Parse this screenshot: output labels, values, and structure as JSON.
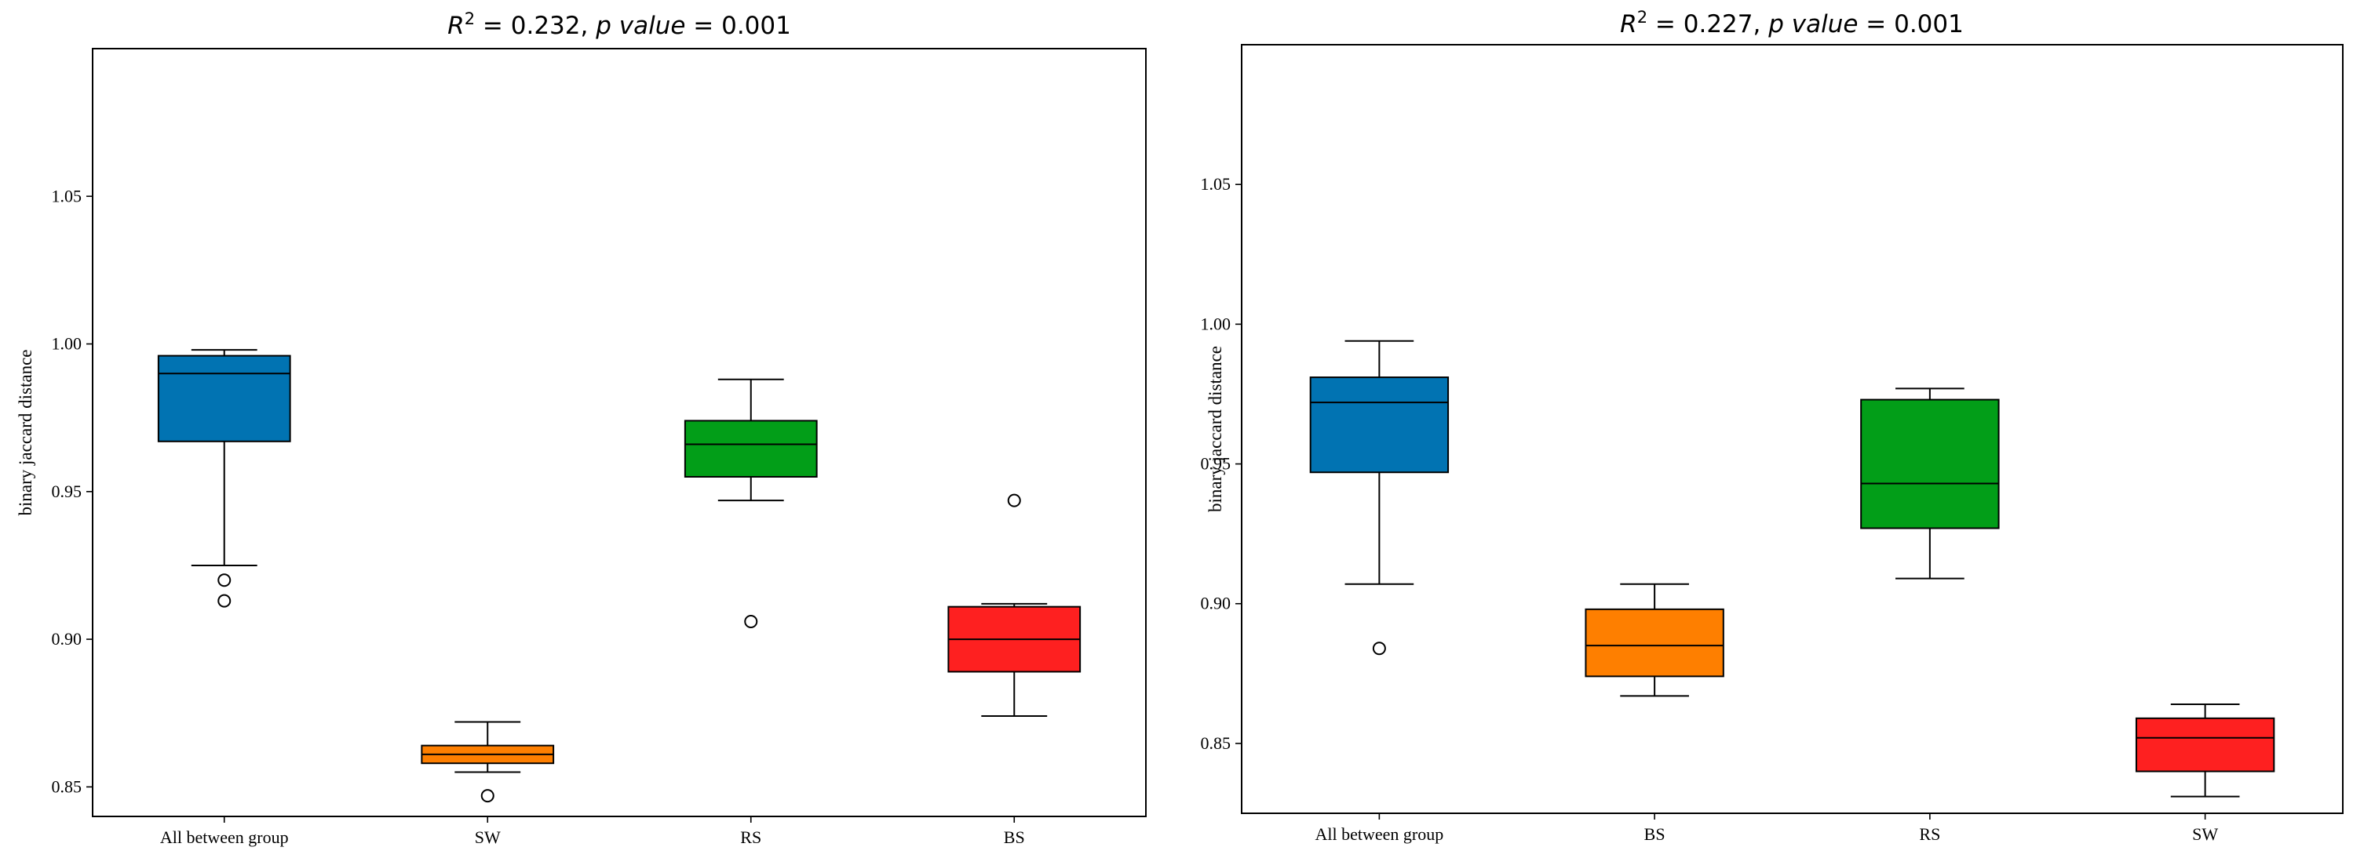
{
  "chart_data": [
    {
      "type": "box",
      "title": "R^2 = 0.232, p value = 0.001",
      "title_parts": {
        "r_label": "R",
        "r_sup": "2",
        "r_value": " = 0.232, ",
        "p_label": "p value",
        "p_value": " = 0.001"
      },
      "xlabel": "",
      "ylabel": "binary jaccard distance",
      "ylim": [
        0.84,
        1.1
      ],
      "yticks": [
        0.85,
        0.9,
        0.95,
        1.0,
        1.05
      ],
      "ytick_labels": [
        "0.85",
        "0.90",
        "0.95",
        "1.00",
        "1.05"
      ],
      "categories": [
        "All between group",
        "SW",
        "RS",
        "BS"
      ],
      "boxes": [
        {
          "name": "All between group",
          "color": "#0173b2",
          "whislo": 0.925,
          "q1": 0.967,
          "med": 0.99,
          "q3": 0.996,
          "whishi": 0.998,
          "fliers": [
            0.92,
            0.913
          ]
        },
        {
          "name": "SW",
          "color": "#fe7f00",
          "whislo": 0.855,
          "q1": 0.858,
          "med": 0.861,
          "q3": 0.864,
          "whishi": 0.872,
          "fliers": [
            0.847
          ]
        },
        {
          "name": "RS",
          "color": "#029e18",
          "whislo": 0.947,
          "q1": 0.955,
          "med": 0.966,
          "q3": 0.974,
          "whishi": 0.988,
          "fliers": [
            0.906
          ]
        },
        {
          "name": "BS",
          "color": "#fe2020",
          "whislo": 0.874,
          "q1": 0.889,
          "med": 0.9,
          "q3": 0.911,
          "whishi": 0.912,
          "fliers": [
            0.947
          ]
        }
      ]
    },
    {
      "type": "box",
      "title": "R^2 = 0.227, p value = 0.001",
      "title_parts": {
        "r_label": "R",
        "r_sup": "2",
        "r_value": " = 0.227, ",
        "p_label": "p value",
        "p_value": " = 0.001"
      },
      "xlabel": "",
      "ylabel": "binary jaccard distance",
      "ylim": [
        0.825,
        1.1
      ],
      "yticks": [
        0.85,
        0.9,
        0.95,
        1.0,
        1.05
      ],
      "ytick_labels": [
        "0.85",
        "0.90",
        "0.95",
        "1.00",
        "1.05"
      ],
      "categories": [
        "All between group",
        "BS",
        "RS",
        "SW"
      ],
      "boxes": [
        {
          "name": "All between group",
          "color": "#0173b2",
          "whislo": 0.907,
          "q1": 0.947,
          "med": 0.972,
          "q3": 0.981,
          "whishi": 0.994,
          "fliers": [
            0.884
          ]
        },
        {
          "name": "BS",
          "color": "#fe7f00",
          "whislo": 0.867,
          "q1": 0.874,
          "med": 0.885,
          "q3": 0.898,
          "whishi": 0.907,
          "fliers": []
        },
        {
          "name": "RS",
          "color": "#029e18",
          "whislo": 0.909,
          "q1": 0.927,
          "med": 0.943,
          "q3": 0.973,
          "whishi": 0.977,
          "fliers": []
        },
        {
          "name": "SW",
          "color": "#fe2020",
          "whislo": 0.831,
          "q1": 0.84,
          "med": 0.852,
          "q3": 0.859,
          "whishi": 0.864,
          "fliers": []
        }
      ]
    }
  ]
}
